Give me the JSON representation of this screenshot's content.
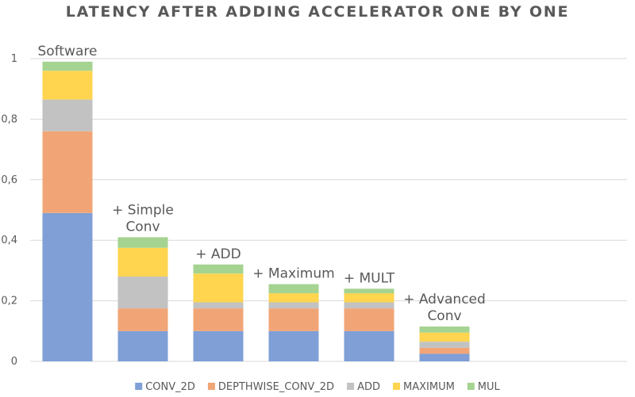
{
  "chart_data": {
    "type": "bar",
    "stacked": true,
    "title": "LATENCY AFTER ADDING ACCELERATOR ONE BY ONE",
    "xlabel": "",
    "ylabel": "",
    "ylim": [
      0,
      1
    ],
    "yticks": [
      "0",
      "0,2",
      "0,4",
      "0,6",
      "0,8",
      "1"
    ],
    "ytick_values": [
      0,
      0.2,
      0.4,
      0.6,
      0.8,
      1
    ],
    "grid": true,
    "legend_position": "bottom",
    "categories": [
      "Software",
      "+ Simple Conv",
      "+ ADD",
      "+ Maximum",
      "+ MULT",
      "+ Advanced Conv"
    ],
    "annotations": [
      [
        "Software"
      ],
      [
        "+ Simple",
        "Conv"
      ],
      [
        "+ ADD"
      ],
      [
        "+ Maximum"
      ],
      [
        "+ MULT"
      ],
      [
        "+ Advanced",
        "Conv"
      ]
    ],
    "series": [
      {
        "name": "CONV_2D",
        "color": "#7f9fd6",
        "values": [
          0.49,
          0.1,
          0.1,
          0.1,
          0.1,
          0.025
        ]
      },
      {
        "name": "DEPTHWISE_CONV_2D",
        "color": "#f1a576",
        "values": [
          0.27,
          0.075,
          0.075,
          0.075,
          0.075,
          0.02
        ]
      },
      {
        "name": "ADD",
        "color": "#c2c2c2",
        "values": [
          0.105,
          0.105,
          0.02,
          0.02,
          0.02,
          0.02
        ]
      },
      {
        "name": "MAXIMUM",
        "color": "#ffd54f",
        "values": [
          0.095,
          0.095,
          0.095,
          0.03,
          0.03,
          0.03
        ]
      },
      {
        "name": "MUL",
        "color": "#a5d391",
        "values": [
          0.03,
          0.035,
          0.03,
          0.03,
          0.015,
          0.02
        ]
      }
    ]
  }
}
